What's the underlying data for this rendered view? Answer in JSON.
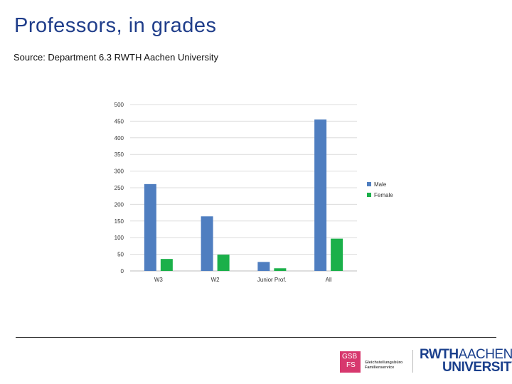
{
  "header": {
    "title": "Professors, in grades",
    "subtitle": "Source: Department 6.3 RWTH Aachen University"
  },
  "colors": {
    "male": "#4f7ec0",
    "female": "#1bb04a",
    "title": "#1f3d8a",
    "gsb": "#d7386e",
    "rwth": "#1a3f8c"
  },
  "chart_data": {
    "type": "bar",
    "categories": [
      "W3",
      "W2",
      "Junior Prof.",
      "All"
    ],
    "series": [
      {
        "name": "Male",
        "values": [
          261,
          164,
          27,
          455
        ],
        "color": "#4f7ec0"
      },
      {
        "name": "Female",
        "values": [
          36,
          49,
          8,
          97
        ],
        "color": "#1bb04a"
      }
    ],
    "yticks": [
      "0",
      "50",
      "100",
      "150",
      "200",
      "250",
      "300",
      "350",
      "400",
      "450",
      "500"
    ],
    "ylim": [
      0,
      500
    ],
    "grid": true,
    "legend": "right"
  },
  "logos": {
    "gsb_line1": "GSB",
    "gsb_line2": "FS",
    "gsb_text1": "Gleichstellungsbüro",
    "gsb_text2": "Familienservice",
    "rwth_bold": "RWTH",
    "rwth_thin": "AACHEN",
    "rwth_line2": "UNIVERSITY"
  }
}
